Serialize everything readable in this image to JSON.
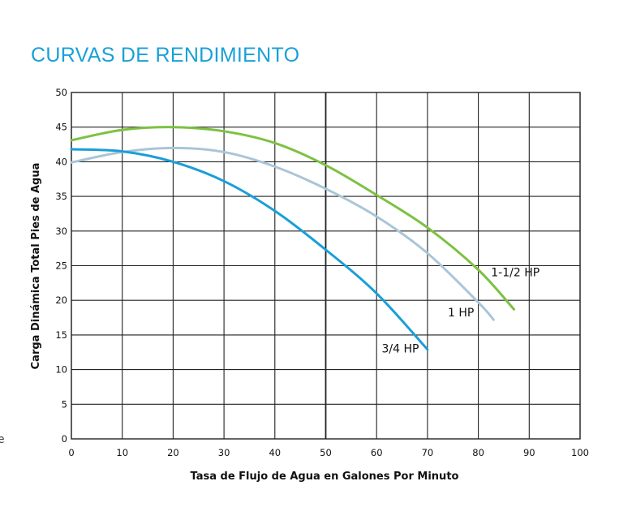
{
  "chart_data": {
    "type": "line",
    "title": "CURVAS DE RENDIMIENTO",
    "xlabel": "Tasa de Flujo de Agua en Galones Por Minuto",
    "ylabel": "Carga Dinámica Total Pies de Agua",
    "xlim": [
      0,
      100
    ],
    "ylim": [
      0,
      50
    ],
    "xticks": [
      0,
      10,
      20,
      30,
      40,
      50,
      60,
      70,
      80,
      90,
      100
    ],
    "yticks": [
      0,
      5,
      10,
      15,
      20,
      25,
      30,
      35,
      40,
      45,
      50
    ],
    "grid": true,
    "legend_position": "inline labels at curve ends",
    "series": [
      {
        "name": "1-1/2 HP",
        "color": "#7dc142",
        "x": [
          0,
          10,
          20,
          30,
          40,
          50,
          60,
          70,
          80,
          87
        ],
        "y": [
          43.1,
          44.6,
          45.0,
          44.4,
          42.7,
          39.5,
          35.2,
          30.5,
          24.4,
          18.7
        ]
      },
      {
        "name": "1 HP",
        "color": "#a9c6d8",
        "x": [
          0,
          10,
          20,
          30,
          40,
          50,
          60,
          70,
          80,
          83
        ],
        "y": [
          39.9,
          41.4,
          42.0,
          41.4,
          39.3,
          36.1,
          32.1,
          26.8,
          19.7,
          17.2
        ]
      },
      {
        "name": "3/4 HP",
        "color": "#1a9ed9",
        "x": [
          0,
          10,
          20,
          30,
          40,
          50,
          60,
          70
        ],
        "y": [
          41.8,
          41.5,
          40.0,
          37.2,
          32.9,
          27.3,
          21.0,
          12.9
        ]
      }
    ],
    "annotations": [
      {
        "text": "1-1/2 HP",
        "x": 82.5,
        "y": 23.5
      },
      {
        "text": "1 HP",
        "x": 74,
        "y": 17.7
      },
      {
        "text": "3/4 HP",
        "x": 61,
        "y": 12.5
      }
    ]
  },
  "page": {
    "title": "CURVAS DE RENDIMIENTO",
    "edge_fragment": "e"
  }
}
